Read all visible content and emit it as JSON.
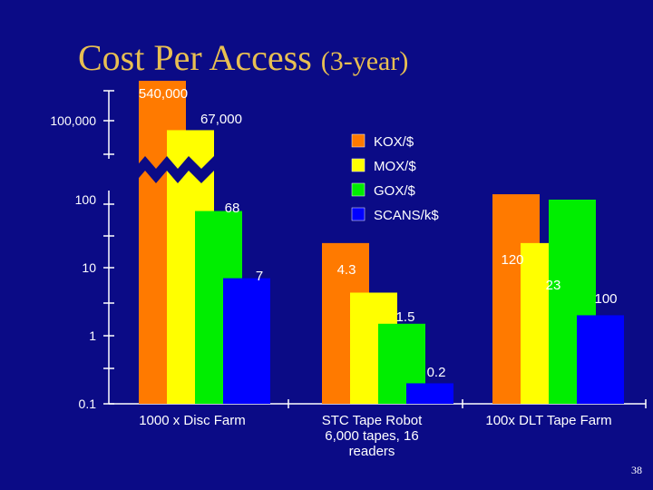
{
  "slide": {
    "title": "Cost Per Access",
    "title_suffix": "(3-year)",
    "page_number": "38"
  },
  "chart_data": {
    "type": "bar",
    "title": "Cost Per Access (3-year)",
    "y_scale": "log",
    "y_axis_break": true,
    "ylim": [
      0.1,
      540000
    ],
    "y_tick_labels": [
      "0.1",
      "1",
      "10",
      "100",
      "100,000"
    ],
    "categories": [
      "1000 x Disc Farm",
      "STC Tape Robot 6,000 tapes, 16 readers",
      "100x DLT Tape Farm"
    ],
    "category_lines": [
      [
        "1000 x Disc Farm"
      ],
      [
        "STC Tape Robot",
        "6,000 tapes, 16",
        "readers"
      ],
      [
        "100x DLT Tape Farm"
      ]
    ],
    "series": [
      {
        "name": "KOX/$",
        "color": "#ff7a00",
        "values": [
          540000,
          23,
          120
        ],
        "labels": [
          "540,000",
          "",
          "120"
        ]
      },
      {
        "name": "MOX/$",
        "color": "#ffff00",
        "values": [
          67000,
          4.3,
          23
        ],
        "labels": [
          "67,000",
          "4.3",
          "23"
        ]
      },
      {
        "name": "GOX/$",
        "color": "#00ee00",
        "values": [
          68,
          1.5,
          100
        ],
        "labels": [
          "68",
          "1.5",
          "100"
        ]
      },
      {
        "name": "SCANS/k$",
        "color": "#0000ff",
        "values": [
          7,
          0.2,
          2
        ],
        "labels": [
          "7",
          "0.2",
          "2"
        ]
      }
    ],
    "legend": {
      "placement": "top-right"
    },
    "grid": false
  }
}
